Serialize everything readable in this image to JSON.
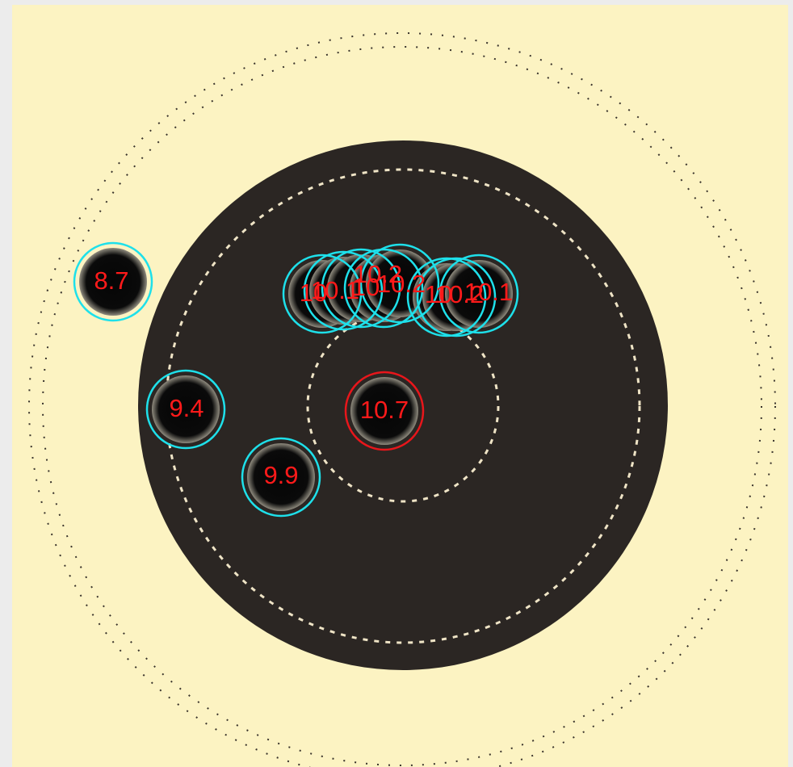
{
  "colors": {
    "page_background": "#ececec",
    "target_paper": "#fcf3c2",
    "black_aiming_area": "#2b2623",
    "ring_line_dark": "#3a342c",
    "ring_line_light": "#efe4c6",
    "shot_circle": "#1ee0ea",
    "best_shot_circle": "#e8161b",
    "score_text": "#ff1a1a"
  },
  "shots": [
    {
      "score": "8.7",
      "highlight": false
    },
    {
      "score": "10",
      "highlight": false
    },
    {
      "score": "10.1",
      "highlight": false
    },
    {
      "score": "10",
      "highlight": false
    },
    {
      "score": "10.2",
      "highlight": false
    },
    {
      "score": "10.2",
      "highlight": false
    },
    {
      "score": "10",
      "highlight": false
    },
    {
      "score": "10.2",
      "highlight": false
    },
    {
      "score": "10.1",
      "highlight": false
    },
    {
      "score": "9.4",
      "highlight": false
    },
    {
      "score": "10.7",
      "highlight": true
    },
    {
      "score": "9.9",
      "highlight": false
    }
  ]
}
